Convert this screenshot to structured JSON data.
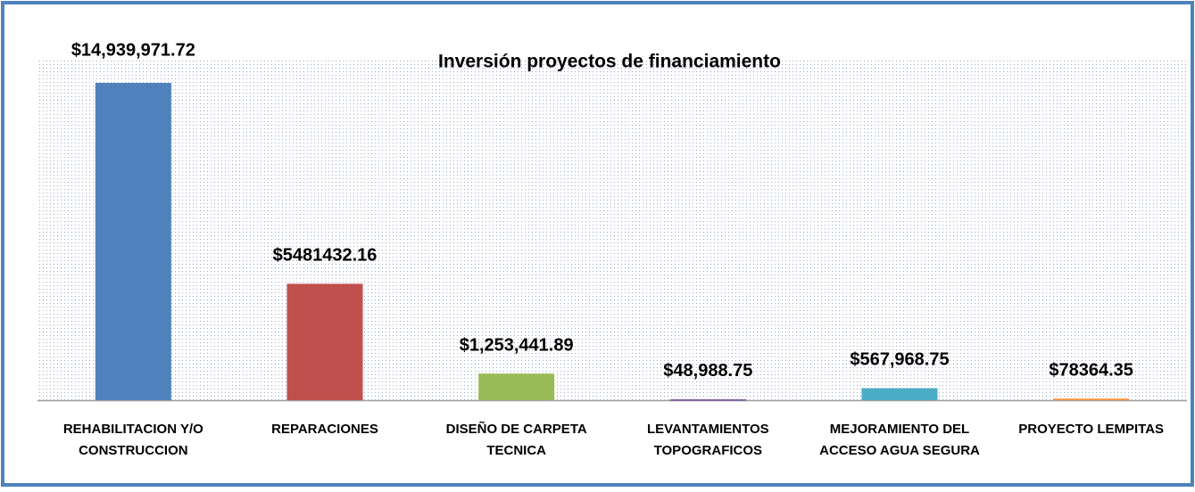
{
  "chart_data": {
    "type": "bar",
    "title": "Inversión proyectos de financiamiento",
    "categories": [
      [
        "REHABILITACION Y/O",
        "CONSTRUCCION"
      ],
      [
        "REPARACIONES"
      ],
      [
        "DISEÑO DE CARPETA",
        "TECNICA"
      ],
      [
        "LEVANTAMIENTOS",
        "TOPOGRAFICOS"
      ],
      [
        "MEJORAMIENTO DEL",
        "ACCESO AGUA SEGURA"
      ],
      [
        "PROYECTO LEMPITAS"
      ]
    ],
    "values": [
      14939971.72,
      5481432.16,
      1253441.89,
      48988.75,
      567968.75,
      78364.35
    ],
    "value_labels": [
      "$14,939,971.72",
      "$5481432.16",
      "$1,253,441.89",
      "$48,988.75",
      "$567,968.75",
      "$78364.35"
    ],
    "colors": [
      "#4f81bd",
      "#c0504d",
      "#9bbb59",
      "#8064a2",
      "#4bacc6",
      "#f79646"
    ]
  }
}
